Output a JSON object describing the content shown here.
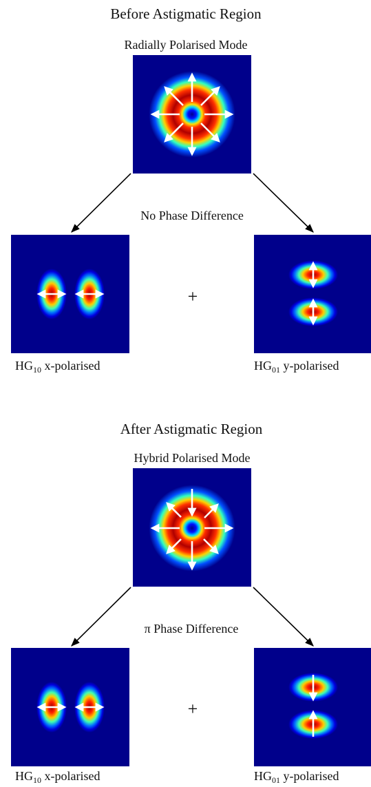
{
  "sections": [
    {
      "heading": "Before Astigmatic Region",
      "mode_label": "Radially Polarised Mode",
      "phase_label": "No Phase Difference",
      "plus": "+",
      "left_caption": {
        "prefix": "HG",
        "subscript": "10",
        "suffix": " x-polarised"
      },
      "right_caption": {
        "prefix": "HG",
        "subscript": "01",
        "suffix": " y-polarised"
      }
    },
    {
      "heading": "After Astigmatic Region",
      "mode_label": "Hybrid Polarised Mode",
      "phase_label": "π Phase Difference",
      "plus": "+",
      "left_caption": {
        "prefix": "HG",
        "subscript": "10",
        "suffix": " x-polarised"
      },
      "right_caption": {
        "prefix": "HG",
        "subscript": "01",
        "suffix": " y-polarised"
      }
    }
  ],
  "colors": {
    "background_field": "#00008b",
    "arrow_white": "#ffffff",
    "connector": "#000000"
  }
}
